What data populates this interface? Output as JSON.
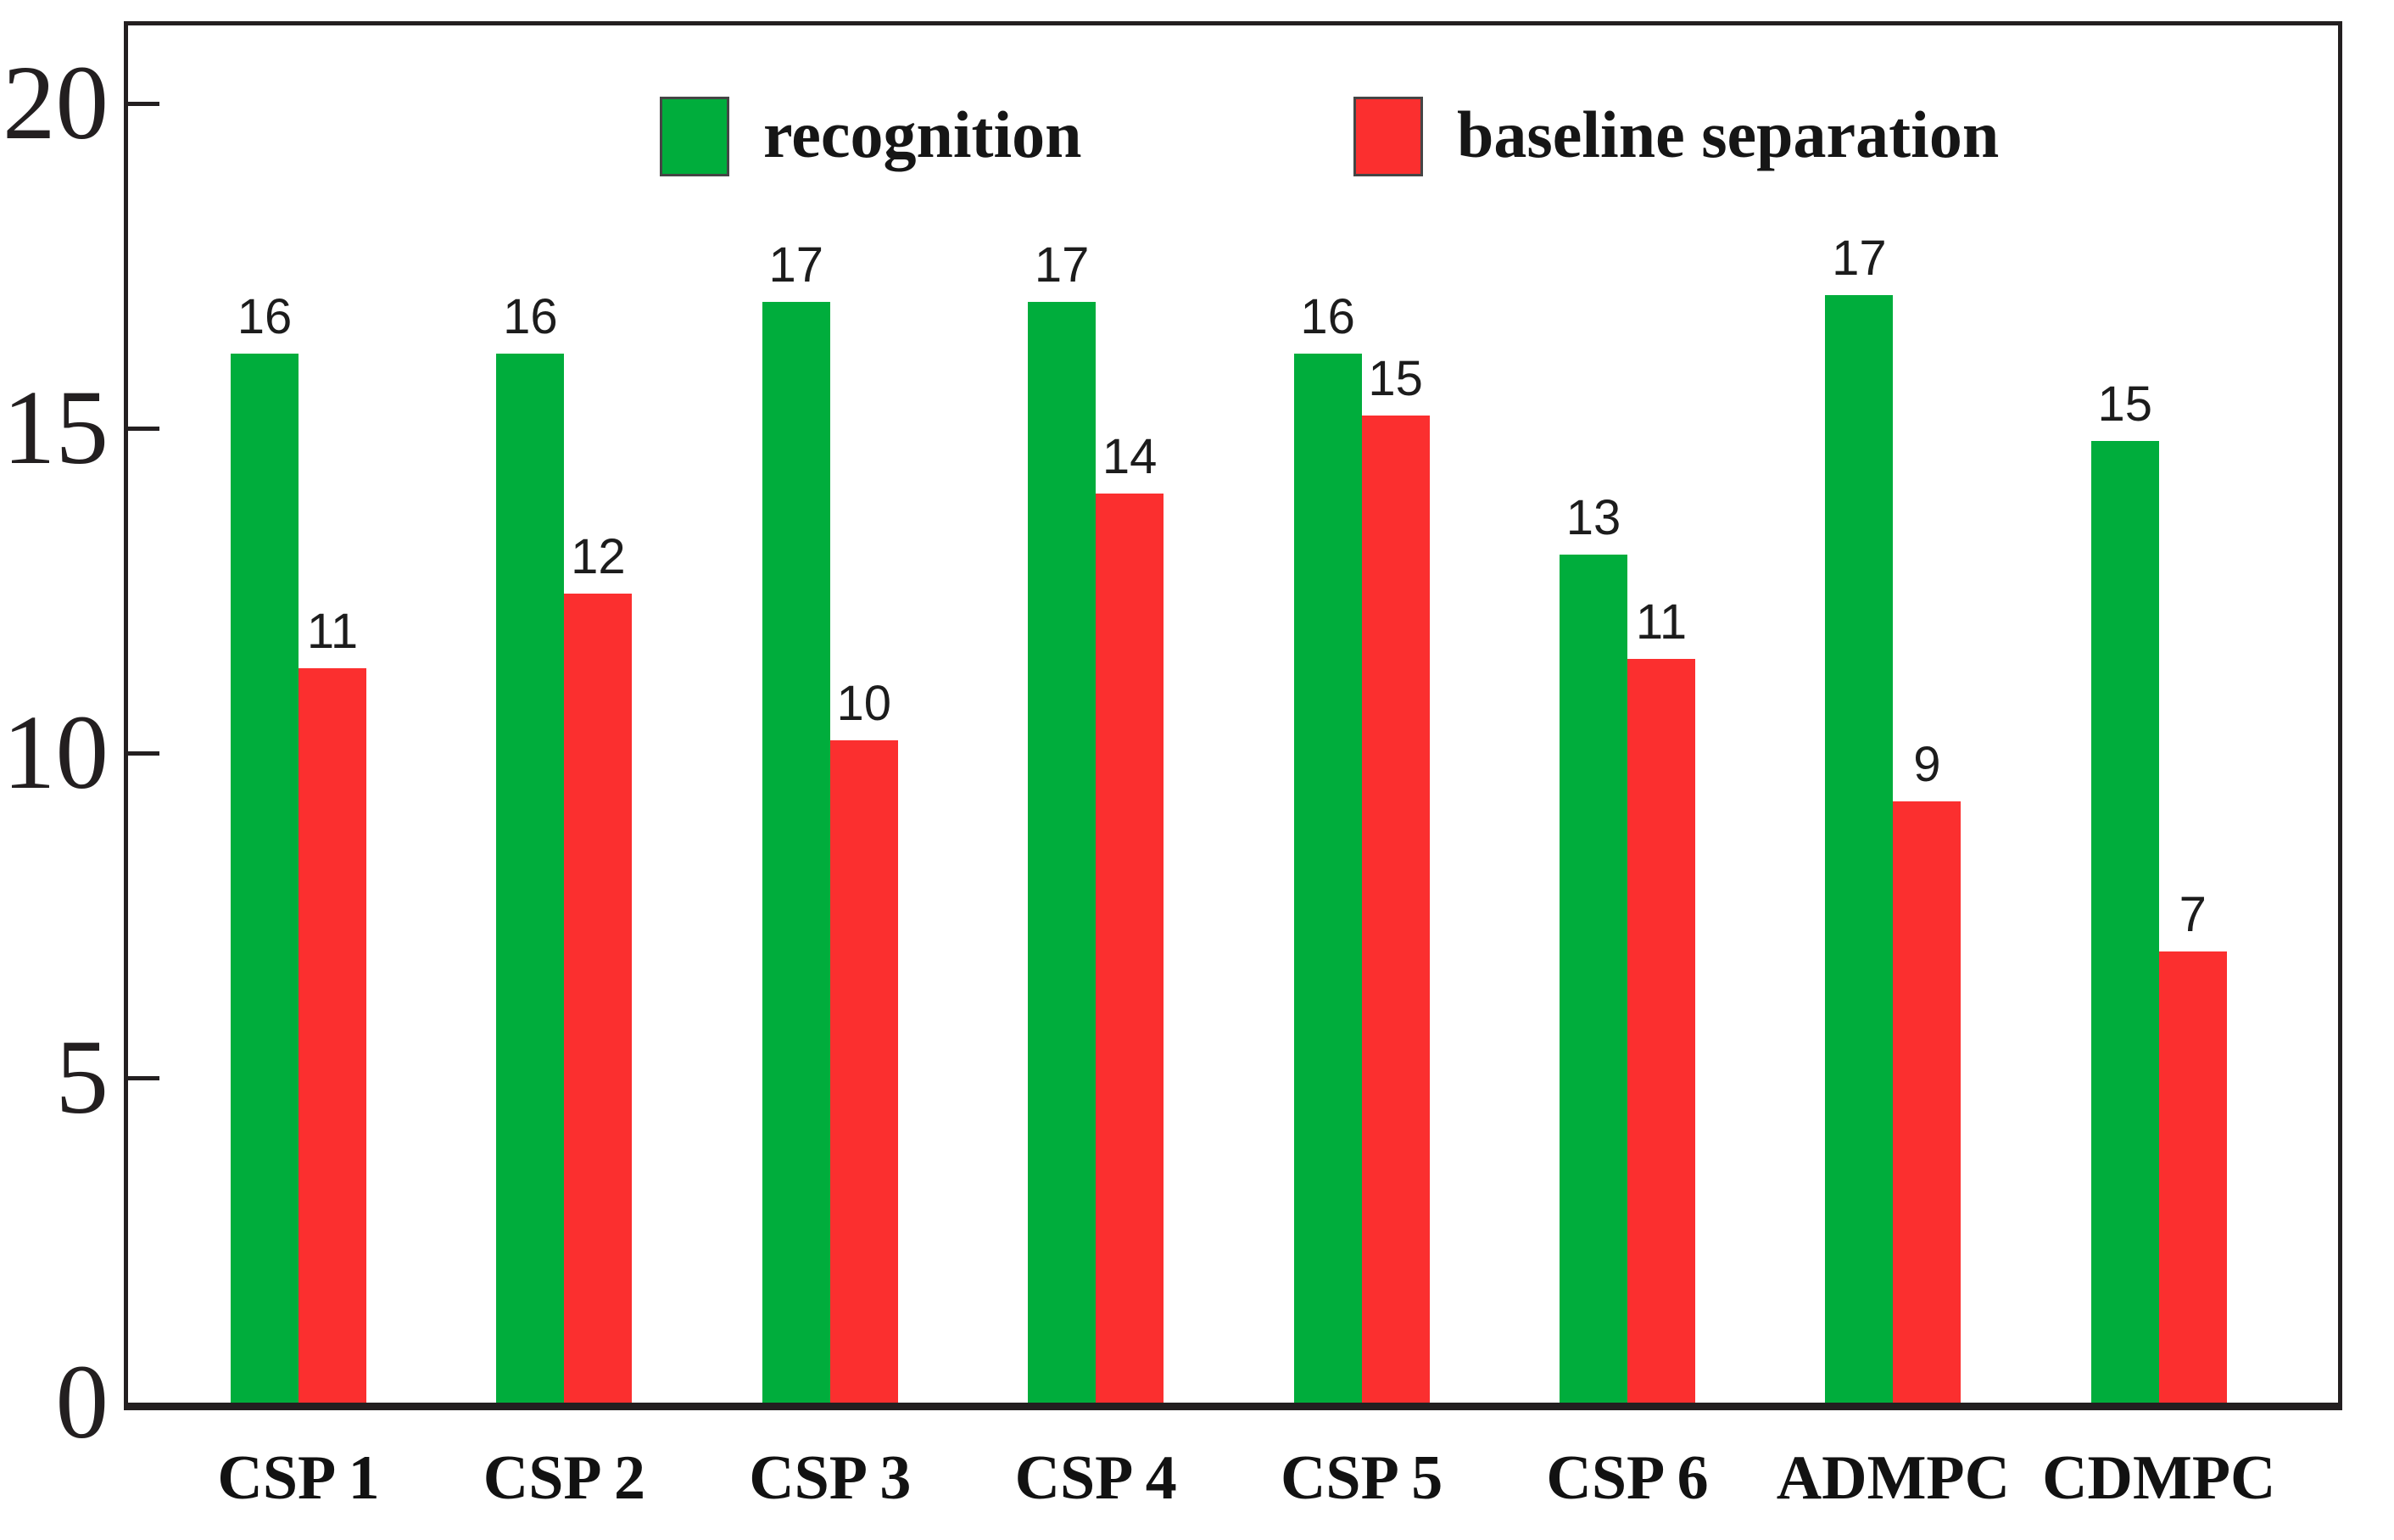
{
  "chart_data": {
    "type": "bar",
    "title": "",
    "xlabel": "",
    "ylabel": "",
    "categories": [
      "CSP 1",
      "CSP 2",
      "CSP 3",
      "CSP 4",
      "CSP 5",
      "CSP 6",
      "ADMPC",
      "CDMPC"
    ],
    "series": [
      {
        "name": "recognition",
        "color": "#00ad3c",
        "values": [
          16,
          16,
          17,
          17,
          16,
          13,
          17,
          15
        ],
        "drawn_values": [
          16.15,
          16.15,
          16.95,
          16.95,
          16.15,
          13.05,
          17.05,
          14.8
        ]
      },
      {
        "name": "baseline separation",
        "color": "#fb2f2f",
        "values": [
          11,
          12,
          10,
          14,
          15,
          11,
          9,
          7
        ],
        "drawn_values": [
          11.3,
          12.45,
          10.2,
          14.0,
          15.2,
          11.45,
          9.25,
          6.95
        ]
      }
    ],
    "yticks": [
      0,
      5,
      10,
      15,
      20
    ],
    "ylim": [
      0,
      21.2
    ],
    "grid": false,
    "legend_position": "top-inside",
    "frame": "full-box",
    "ink_color": "#231f20"
  }
}
